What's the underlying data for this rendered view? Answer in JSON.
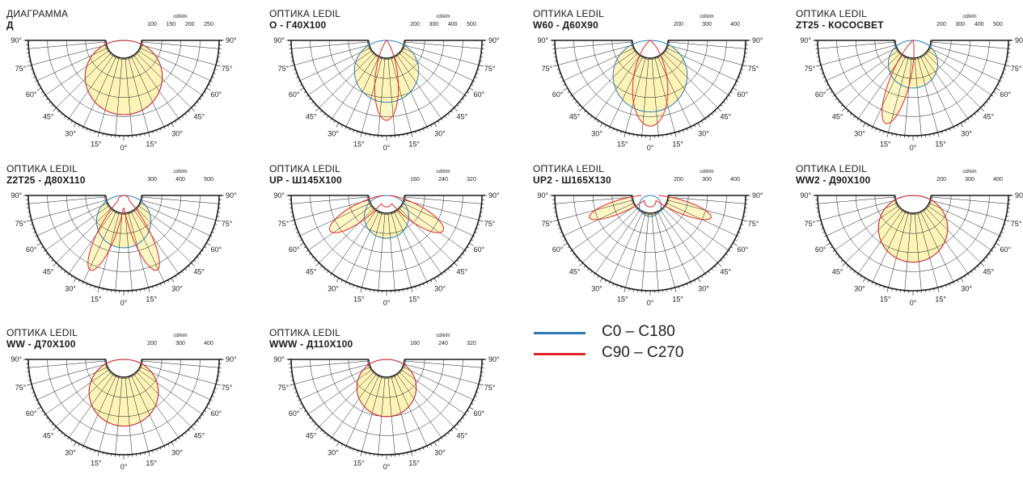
{
  "colors": {
    "c0": "#2a7ab8",
    "c90": "#e0262b",
    "fill": "#fff4b8",
    "grid": "#1a1a1a"
  },
  "angle_labels": [
    "90°",
    "75°",
    "60°",
    "45°",
    "30°",
    "15°",
    "0°"
  ],
  "unit": "cd/klm",
  "diagrams": [
    {
      "subtitle": "ДИАГРАММА",
      "name": "Д",
      "ticks": [
        "100",
        "150",
        "200",
        "250"
      ],
      "curves": {
        "c0": {
          "type": "lamb",
          "w": 0.78
        },
        "c90": {
          "type": "lamb",
          "w": 0.78
        }
      }
    },
    {
      "subtitle": "ОПТИКА LEDIL",
      "name": "O - Г40Х100",
      "ticks": [
        "200",
        "300",
        "400",
        "500"
      ],
      "curves": {
        "c0": {
          "type": "lamb",
          "w": 0.65
        },
        "c90": {
          "type": "narrow",
          "half": 20,
          "len": 0.84
        }
      }
    },
    {
      "subtitle": "ОПТИКА LEDIL",
      "name": "W60 - Д60Х90",
      "ticks": [
        "200",
        "300",
        "400"
      ],
      "curves": {
        "c0": {
          "type": "lamb",
          "w": 0.75
        },
        "c90": {
          "type": "narrow",
          "half": 28,
          "len": 0.9
        }
      }
    },
    {
      "subtitle": "ОПТИКА LEDIL",
      "name": "ZT25 - КОСОСВЕТ",
      "ticks": [
        "200",
        "300",
        "400",
        "500"
      ],
      "curves": {
        "c0": {
          "type": "lamb",
          "w": 0.5
        },
        "c90": {
          "type": "asym",
          "half": 16,
          "len": 0.92,
          "tilt": -18
        }
      }
    },
    {
      "subtitle": "ОПТИКА LEDIL",
      "name": "Z2T25 - Д80Х110",
      "ticks": [
        "300",
        "400",
        "500"
      ],
      "curves": {
        "c0": {
          "type": "lamb",
          "w": 0.55
        },
        "c90": {
          "type": "twin",
          "half": 15,
          "len": 0.86,
          "tilt": 24
        }
      }
    },
    {
      "subtitle": "ОПТИКА LEDIL",
      "name": "UP - Ш145Х100",
      "ticks": [
        "160",
        "240",
        "320"
      ],
      "curves": {
        "c0": {
          "type": "lamb",
          "w": 0.45
        },
        "c90": {
          "type": "bat",
          "half": 18,
          "len": 0.7,
          "tilt": 58
        }
      }
    },
    {
      "subtitle": "ОПТИКА LEDIL",
      "name": "UP2 - Ш165Х130",
      "ticks": [
        "200",
        "300",
        "400"
      ],
      "curves": {
        "c0": {
          "type": "lamb",
          "w": 0.22
        },
        "c90": {
          "type": "bat",
          "half": 14,
          "len": 0.68,
          "tilt": 70
        }
      }
    },
    {
      "subtitle": "ОПТИКА LEDIL",
      "name": "WW2 - Д90Х100",
      "ticks": [
        "200",
        "300",
        "400"
      ],
      "curves": {
        "c0": {
          "type": "lamb",
          "w": 0.7
        },
        "c90": {
          "type": "lamb",
          "w": 0.7
        }
      }
    },
    {
      "subtitle": "ОПТИКА LEDIL",
      "name": "WW - Д70Х100",
      "ticks": [
        "200",
        "300",
        "400"
      ],
      "curves": {
        "c0": {
          "type": "lamb",
          "w": 0.7
        },
        "c90": {
          "type": "lamb",
          "w": 0.7
        }
      }
    },
    {
      "subtitle": "ОПТИКА LEDIL",
      "name": "WWW - Д110Х100",
      "ticks": [
        "160",
        "240",
        "320"
      ],
      "curves": {
        "c0": {
          "type": "lamb",
          "w": 0.6
        },
        "c90": {
          "type": "lamb",
          "w": 0.6
        }
      }
    }
  ],
  "legend": [
    {
      "label": "C0 – C180",
      "color": "#2a7ab8"
    },
    {
      "label": "C90 – C270",
      "color": "#e0262b"
    }
  ]
}
